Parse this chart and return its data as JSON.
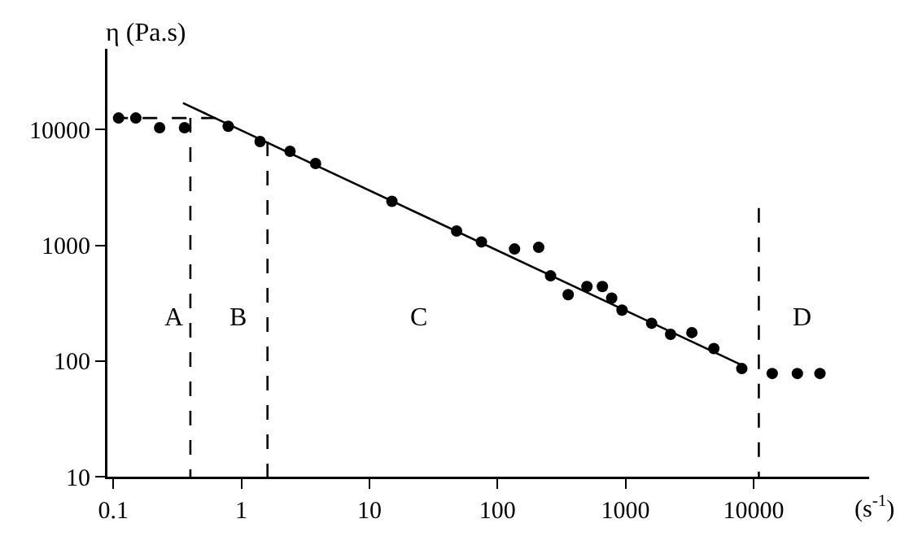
{
  "chart_data": {
    "type": "scatter",
    "xlabel": "(s$^{-1}$)",
    "ylabel": "η (Pa.s)",
    "log": "xy",
    "xlim": [
      0.09,
      80000
    ],
    "ylim": [
      10,
      50000
    ],
    "xticks": [
      0.1,
      1,
      10,
      100,
      1000,
      10000
    ],
    "yticks": [
      10,
      100,
      1000,
      10000
    ],
    "series": [
      {
        "marker": "circle",
        "color": "#000000",
        "x": [
          0.11,
          0.15,
          0.23,
          0.36,
          0.79,
          1.4,
          2.4,
          3.8,
          15,
          48,
          75,
          136,
          210,
          260,
          357,
          500,
          660,
          780,
          940,
          1600,
          2250,
          3300,
          4900,
          8100,
          14000,
          22000,
          33000
        ],
        "values": [
          12600,
          12600,
          10400,
          10400,
          10700,
          7900,
          6500,
          5100,
          2400,
          1330,
          1070,
          930,
          960,
          545,
          375,
          440,
          440,
          350,
          275,
          212,
          170,
          176,
          128,
          86,
          78,
          78,
          78
        ]
      },
      {
        "type": "line",
        "color": "#000000",
        "line_style": "solid",
        "x": [
          0.35,
          7800
        ],
        "values": [
          17000,
          94
        ]
      },
      {
        "type": "line",
        "color": "#000000",
        "line_style": "dashed",
        "x": [
          0.1,
          0.75
        ],
        "values": [
          12600,
          12600
        ]
      },
      {
        "type": "line",
        "color": "#000000",
        "line_style": "dashed",
        "x": [
          0.4,
          0.4
        ],
        "values": [
          12600,
          10
        ]
      },
      {
        "type": "line",
        "color": "#000000",
        "line_style": "dashed",
        "x": [
          1.6,
          1.6
        ],
        "values": [
          7900,
          10
        ]
      },
      {
        "type": "line",
        "color": "#000000",
        "line_style": "dashed",
        "x": [
          11000,
          11000
        ],
        "values": [
          2100,
          10
        ]
      }
    ],
    "annotations": [
      "A",
      "B",
      "C",
      "D"
    ]
  }
}
